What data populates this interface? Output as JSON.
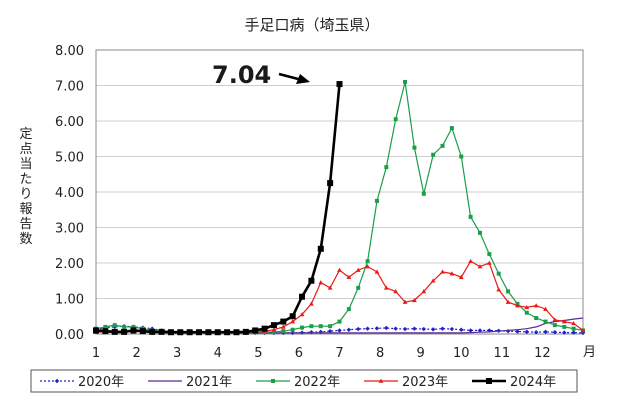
{
  "chart_data": {
    "type": "line",
    "title": "手足口病（埼玉県）",
    "ylabel": "定点当たり報告数",
    "xunit": "月",
    "ylim": [
      0,
      8
    ],
    "yticks": [
      "0.00",
      "1.00",
      "2.00",
      "3.00",
      "4.00",
      "5.00",
      "6.00",
      "7.00",
      "8.00"
    ],
    "month_labels": [
      "1",
      "2",
      "3",
      "4",
      "5",
      "6",
      "7",
      "8",
      "9",
      "10",
      "11",
      "12"
    ],
    "weeks": 53,
    "annotation": "7.04",
    "grid": true,
    "legend_position": "bottom",
    "series": [
      {
        "name": "2020年",
        "color": "#1f1fd0",
        "marker": "diamond",
        "dash": "2,2",
        "values": [
          0.12,
          0.18,
          0.2,
          0.22,
          0.2,
          0.18,
          0.15,
          0.1,
          0.08,
          0.06,
          0.05,
          0.04,
          0.04,
          0.04,
          0.03,
          0.03,
          0.03,
          0.03,
          0.03,
          0.03,
          0.03,
          0.03,
          0.04,
          0.05,
          0.06,
          0.08,
          0.1,
          0.12,
          0.14,
          0.15,
          0.16,
          0.17,
          0.15,
          0.14,
          0.15,
          0.14,
          0.13,
          0.15,
          0.14,
          0.12,
          0.1,
          0.1,
          0.1,
          0.09,
          0.08,
          0.07,
          0.06,
          0.05,
          0.06,
          0.05,
          0.04,
          0.04,
          0.03
        ]
      },
      {
        "name": "2021年",
        "color": "#5a2d91",
        "marker": "none",
        "dash": "",
        "values": [
          0.1,
          0.1,
          0.08,
          0.08,
          0.07,
          0.07,
          0.06,
          0.06,
          0.05,
          0.05,
          0.05,
          0.04,
          0.04,
          0.04,
          0.04,
          0.03,
          0.03,
          0.03,
          0.03,
          0.03,
          0.03,
          0.03,
          0.03,
          0.03,
          0.03,
          0.03,
          0.03,
          0.03,
          0.03,
          0.03,
          0.03,
          0.03,
          0.03,
          0.03,
          0.03,
          0.03,
          0.03,
          0.03,
          0.03,
          0.03,
          0.04,
          0.05,
          0.06,
          0.08,
          0.1,
          0.12,
          0.15,
          0.2,
          0.3,
          0.35,
          0.38,
          0.42,
          0.45
        ]
      },
      {
        "name": "2022年",
        "color": "#1a9e4a",
        "marker": "square",
        "dash": "",
        "values": [
          0.15,
          0.2,
          0.25,
          0.2,
          0.2,
          0.15,
          0.1,
          0.08,
          0.07,
          0.06,
          0.05,
          0.04,
          0.04,
          0.05,
          0.05,
          0.05,
          0.05,
          0.05,
          0.05,
          0.06,
          0.08,
          0.12,
          0.18,
          0.22,
          0.22,
          0.22,
          0.35,
          0.7,
          1.3,
          2.05,
          3.75,
          4.7,
          6.05,
          7.1,
          5.25,
          3.95,
          5.05,
          5.3,
          5.8,
          5.0,
          3.3,
          2.85,
          2.25,
          1.7,
          1.2,
          0.85,
          0.6,
          0.45,
          0.35,
          0.25,
          0.2,
          0.15,
          0.1
        ]
      },
      {
        "name": "2023年",
        "color": "#e81b1b",
        "marker": "triangle",
        "dash": "",
        "values": [
          0.05,
          0.06,
          0.07,
          0.08,
          0.08,
          0.07,
          0.06,
          0.05,
          0.05,
          0.05,
          0.05,
          0.05,
          0.05,
          0.05,
          0.05,
          0.05,
          0.05,
          0.05,
          0.08,
          0.12,
          0.2,
          0.35,
          0.55,
          0.85,
          1.45,
          1.3,
          1.8,
          1.6,
          1.8,
          1.9,
          1.75,
          1.3,
          1.2,
          0.9,
          0.95,
          1.2,
          1.5,
          1.75,
          1.7,
          1.6,
          2.05,
          1.9,
          2.0,
          1.25,
          0.9,
          0.8,
          0.75,
          0.8,
          0.7,
          0.4,
          0.35,
          0.3,
          0.1
        ]
      },
      {
        "name": "2024年",
        "color": "#000000",
        "marker": "square",
        "dash": "",
        "values": [
          0.1,
          0.08,
          0.06,
          0.06,
          0.1,
          0.08,
          0.06,
          0.06,
          0.05,
          0.05,
          0.05,
          0.05,
          0.05,
          0.05,
          0.05,
          0.05,
          0.06,
          0.1,
          0.15,
          0.25,
          0.35,
          0.5,
          1.05,
          1.5,
          2.4,
          4.25,
          7.04
        ]
      }
    ]
  }
}
